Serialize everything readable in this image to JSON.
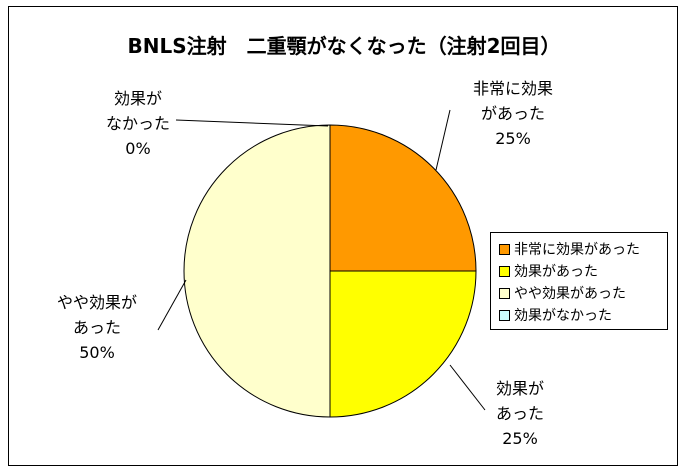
{
  "chart_data": {
    "type": "pie",
    "title": "BNLS注射　二重顎がなくなった（注射2回目）",
    "categories": [
      "非常に効果があった",
      "効果があった",
      "やや効果があった",
      "効果がなかった"
    ],
    "values": [
      25,
      25,
      50,
      0
    ],
    "value_labels": [
      "25%",
      "25%",
      "50%",
      "0%"
    ],
    "slice_labels": [
      [
        "非常に効果",
        "があった"
      ],
      [
        "効果が",
        "あった"
      ],
      [
        "やや効果が",
        "あった"
      ],
      [
        "効果が",
        "なかった"
      ]
    ],
    "colors": [
      "#FF9900",
      "#FFFF00",
      "#FFFFCC",
      "#CCFFFF"
    ],
    "legend_position": "right"
  }
}
